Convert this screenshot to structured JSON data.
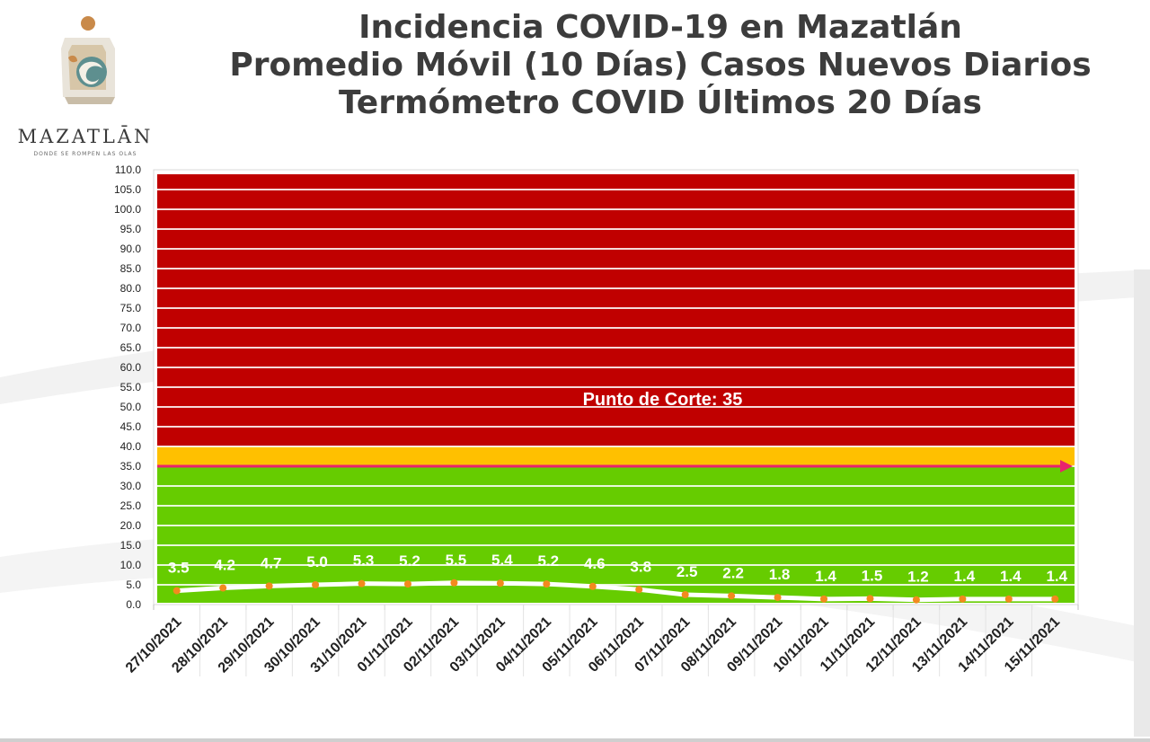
{
  "header": {
    "title_line1": "Incidencia COVID-19 en Mazatlán",
    "title_line2": "Promedio Móvil (10 Días) Casos Nuevos Diarios",
    "title_line3": "Termómetro COVID Últimos 20 Días"
  },
  "logo": {
    "wordmark": "MAZATLĀN",
    "tagline": "DONDE SE ROMPEN LAS OLAS"
  },
  "colors": {
    "red_zone": "#c00000",
    "yellow_zone": "#ffc000",
    "green_zone": "#66cc00",
    "line": "#ffffff",
    "marker": "#f28a1e",
    "cutoff_arrow": "#e8236e",
    "title": "#3c3c3c"
  },
  "chart_data": {
    "type": "line",
    "title": "Incidencia COVID-19 en Mazatlán",
    "xlabel": "",
    "ylabel": "",
    "ylim": [
      0,
      110
    ],
    "y_ticks": [
      "0.0",
      "5.0",
      "10.0",
      "15.0",
      "20.0",
      "25.0",
      "30.0",
      "35.0",
      "40.0",
      "45.0",
      "50.0",
      "55.0",
      "60.0",
      "65.0",
      "70.0",
      "75.0",
      "80.0",
      "85.0",
      "90.0",
      "95.0",
      "100.0",
      "105.0",
      "110.0"
    ],
    "categories": [
      "27/10/2021",
      "28/10/2021",
      "29/10/2021",
      "30/10/2021",
      "31/10/2021",
      "01/11/2021",
      "02/11/2021",
      "03/11/2021",
      "04/11/2021",
      "05/11/2021",
      "06/11/2021",
      "07/11/2021",
      "08/11/2021",
      "09/11/2021",
      "10/11/2021",
      "11/11/2021",
      "12/11/2021",
      "13/11/2021",
      "14/11/2021",
      "15/11/2021"
    ],
    "values": [
      3.5,
      4.2,
      4.7,
      5.0,
      5.3,
      5.2,
      5.5,
      5.4,
      5.2,
      4.6,
      3.8,
      2.5,
      2.2,
      1.8,
      1.4,
      1.5,
      1.2,
      1.4,
      1.4,
      1.4
    ],
    "labels": [
      "3.5",
      "4.2",
      "4.7",
      "5.0",
      "5.3",
      "5.2",
      "5.5",
      "5.4",
      "5.2",
      "4.6",
      "3.8",
      "2.5",
      "2.2",
      "1.8",
      "1.4",
      "1.5",
      "1.2",
      "1.4",
      "1.4",
      "1.4"
    ],
    "zones": [
      {
        "from": 0,
        "to": 35,
        "color": "#66cc00"
      },
      {
        "from": 35,
        "to": 40,
        "color": "#ffc000"
      },
      {
        "from": 40,
        "to": 110,
        "color": "#c00000"
      }
    ],
    "cutoff": {
      "value": 35,
      "label": "Punto de Corte: 35"
    },
    "grid": true,
    "legend": "none"
  }
}
